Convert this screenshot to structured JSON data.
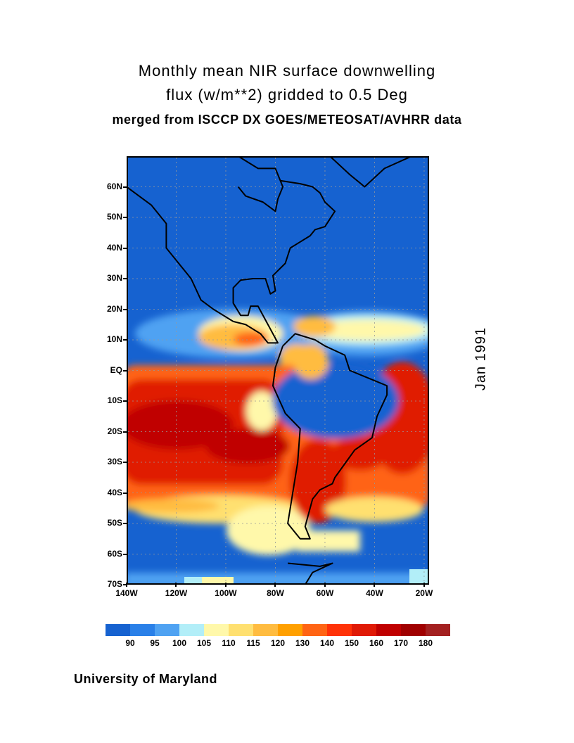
{
  "title": {
    "line1": "Monthly mean NIR surface downwelling",
    "line2": "flux (w/m**2) gridded to 0.5 Deg",
    "line3": "merged from ISCCP DX GOES/METEOSAT/AVHRR data"
  },
  "date_label": "Jan 1991",
  "credit": "University of Maryland",
  "map": {
    "lat_range": [
      -70,
      70
    ],
    "lon_range": [
      -140,
      -18
    ],
    "grid": "dashed",
    "y_ticks": [
      "60N",
      "50N",
      "40N",
      "30N",
      "20N",
      "10N",
      "EQ",
      "10S",
      "20S",
      "30S",
      "40S",
      "50S",
      "60S",
      "70S"
    ],
    "x_ticks": [
      "140W",
      "120W",
      "100W",
      "80W",
      "60W",
      "40W",
      "20W"
    ]
  },
  "colorbar": {
    "labels": [
      "90",
      "95",
      "100",
      "105",
      "110",
      "115",
      "120",
      "130",
      "140",
      "150",
      "160",
      "170",
      "180"
    ],
    "colors": [
      "#1662d0",
      "#2a80e8",
      "#4fa2f2",
      "#b2eef8",
      "#fff8aa",
      "#ffe070",
      "#ffbc40",
      "#ffa000",
      "#ff6414",
      "#ff3208",
      "#e01a06",
      "#c00000",
      "#a00000",
      "#a32020"
    ]
  }
}
